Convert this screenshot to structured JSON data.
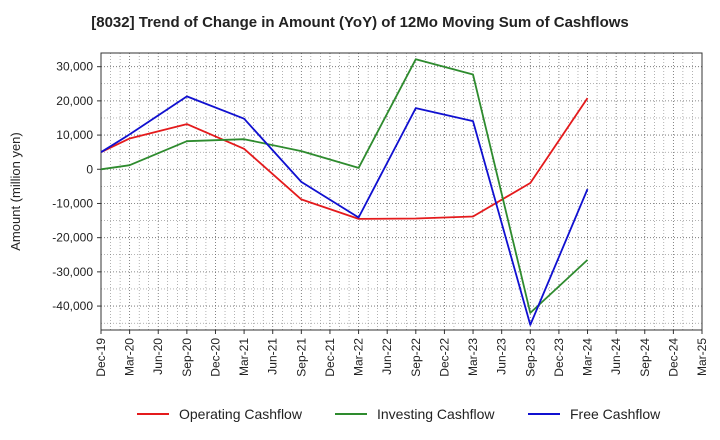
{
  "chart_data": {
    "type": "line",
    "title": "[8032]  Trend of Change in Amount (YoY) of 12Mo Moving Sum of Cashflows",
    "xlabel": "",
    "ylabel": "Amount (million yen)",
    "ylim": [
      -47000,
      34000
    ],
    "yticks": [
      30000,
      20000,
      10000,
      0,
      -10000,
      -20000,
      -30000,
      -40000
    ],
    "ytick_labels": [
      "30,000",
      "20,000",
      "10,000",
      "0",
      "-10,000",
      "-20,000",
      "-30,000",
      "-40,000"
    ],
    "categories": [
      "Dec-19",
      "Mar-20",
      "Jun-20",
      "Sep-20",
      "Dec-20",
      "Mar-21",
      "Jun-21",
      "Sep-21",
      "Dec-21",
      "Mar-22",
      "Jun-22",
      "Sep-22",
      "Dec-22",
      "Mar-23",
      "Jun-23",
      "Sep-23",
      "Dec-23",
      "Mar-24",
      "Jun-24",
      "Sep-24",
      "Dec-24",
      "Mar-25"
    ],
    "grid": true,
    "legend_position": "bottom",
    "series": [
      {
        "name": "Operating Cashflow",
        "color": "#e41a1c",
        "values": [
          5000,
          9000,
          null,
          13200,
          null,
          6000,
          null,
          -8800,
          null,
          -14500,
          null,
          -14400,
          null,
          -13800,
          null,
          -4000,
          null,
          20800,
          null,
          null,
          null,
          null
        ]
      },
      {
        "name": "Investing Cashflow",
        "color": "#2e8b2e",
        "values": [
          0,
          1200,
          null,
          8200,
          null,
          8800,
          null,
          5300,
          null,
          400,
          null,
          32200,
          null,
          27700,
          null,
          -42000,
          null,
          -26500,
          null,
          null,
          null,
          null
        ]
      },
      {
        "name": "Free Cashflow",
        "color": "#1010d0",
        "values": [
          5000,
          10200,
          null,
          21300,
          null,
          14800,
          null,
          -3700,
          null,
          -14100,
          null,
          17900,
          null,
          14100,
          null,
          -45500,
          null,
          -5800,
          null,
          null,
          null,
          null
        ]
      }
    ]
  }
}
